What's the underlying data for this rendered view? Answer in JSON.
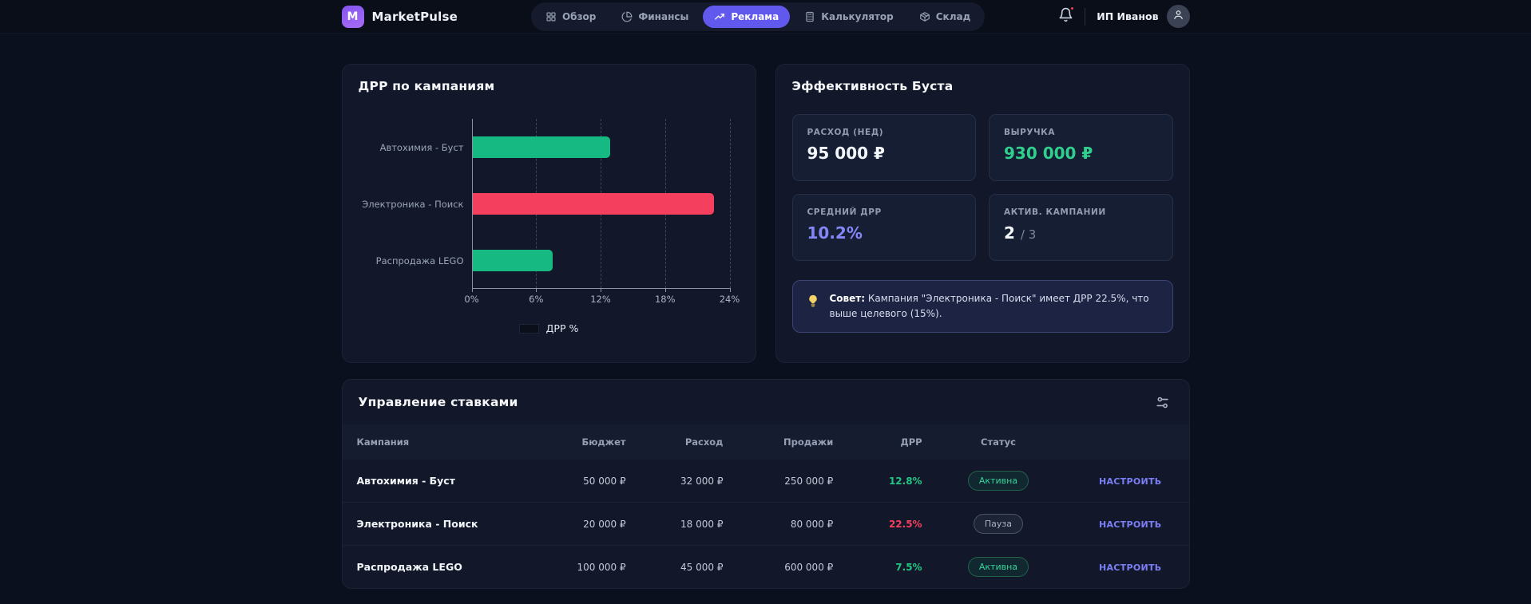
{
  "navbar": {
    "brand": "MarketPulse",
    "logo_letter": "M",
    "items": [
      {
        "label": "Обзор",
        "icon": "grid-icon",
        "active": false
      },
      {
        "label": "Финансы",
        "icon": "pie-chart-icon",
        "active": false
      },
      {
        "label": "Реклама",
        "icon": "trending-up-icon",
        "active": true
      },
      {
        "label": "Калькулятор",
        "icon": "calculator-icon",
        "active": false
      },
      {
        "label": "Склад",
        "icon": "package-icon",
        "active": false
      }
    ],
    "has_notification_dot": true,
    "user_name": "ИП Иванов"
  },
  "chart_card": {
    "title": "ДРР по кампаниям",
    "legend_label": "ДРР %"
  },
  "chart_data": {
    "type": "bar",
    "orientation": "horizontal",
    "title": "ДРР по кампаниям",
    "categories": [
      "Автохимия - Буст",
      "Электроника - Поиск",
      "Распродажа LEGO"
    ],
    "values": [
      12.8,
      22.5,
      7.5
    ],
    "bar_colors": [
      "#16b981",
      "#f43f5e",
      "#16b981"
    ],
    "xlim": [
      0,
      24
    ],
    "xticks": [
      0,
      6,
      12,
      18,
      24
    ],
    "xtick_suffix": "%",
    "grid": "dashed-vertical",
    "legend": [
      "ДРР %"
    ],
    "legend_position": "bottom"
  },
  "boost_card": {
    "title": "Эффективность Буста",
    "stats": [
      {
        "label": "РАСХОД (НЕД)",
        "value": "95 000 ₽",
        "color": "white",
        "suffix": ""
      },
      {
        "label": "ВЫРУЧКА",
        "value": "930 000 ₽",
        "color": "green",
        "suffix": ""
      },
      {
        "label": "СРЕДНИЙ ДРР",
        "value": "10.2%",
        "color": "purple",
        "suffix": ""
      },
      {
        "label": "АКТИВ. КАМПАНИИ",
        "value": "2",
        "color": "white",
        "suffix": "/ 3"
      }
    ],
    "tip_bold": "Совет:",
    "tip_text": " Кампания \"Электроника - Поиск\" имеет ДРР 22.5%, что выше целевого (15%)."
  },
  "bids_card": {
    "title": "Управление ставками",
    "columns": [
      "Кампания",
      "Бюджет",
      "Расход",
      "Продажи",
      "ДРР",
      "Статус"
    ],
    "rows": [
      {
        "campaign": "Автохимия - Буст",
        "budget": "50 000 ₽",
        "spend": "32 000 ₽",
        "sales": "250 000 ₽",
        "drr": "12.8%",
        "drr_color": "green",
        "status": "Активна",
        "status_type": "active",
        "action": "НАСТРОИТЬ"
      },
      {
        "campaign": "Электроника - Поиск",
        "budget": "20 000 ₽",
        "spend": "18 000 ₽",
        "sales": "80 000 ₽",
        "drr": "22.5%",
        "drr_color": "red",
        "status": "Пауза",
        "status_type": "paused",
        "action": "НАСТРОИТЬ"
      },
      {
        "campaign": "Распродажа LEGO",
        "budget": "100 000 ₽",
        "spend": "45 000 ₽",
        "sales": "600 000 ₽",
        "drr": "7.5%",
        "drr_color": "green",
        "status": "Активна",
        "status_type": "active",
        "action": "НАСТРОИТЬ"
      }
    ]
  },
  "colors": {
    "green": "#22c584",
    "red": "#f43f5e",
    "purple": "#8586f8",
    "accent": "#6159ee",
    "bar_green": "#16b981",
    "bar_red": "#f43f5e"
  }
}
